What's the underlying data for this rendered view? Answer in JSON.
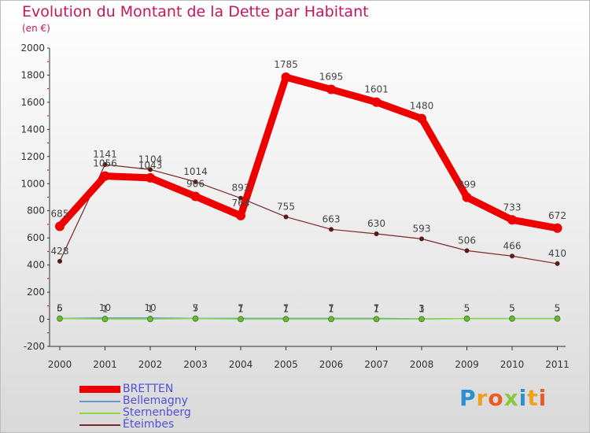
{
  "title": "Evolution du Montant de la Dette par Habitant",
  "unit": "(en €)",
  "colors": {
    "title": "#c2185b",
    "legend_text": "#5050d8",
    "axis": "#333333",
    "tick_mark": "#cc0000"
  },
  "logo": {
    "text": "Proxiti",
    "letters": [
      {
        "ch": "P",
        "color": "#2e8fd0"
      },
      {
        "ch": "r",
        "color": "#f0a020"
      },
      {
        "ch": "o",
        "color": "#ee5a24"
      },
      {
        "ch": "x",
        "color": "#8dc63f"
      },
      {
        "ch": "i",
        "color": "#2e8fd0"
      },
      {
        "ch": "t",
        "color": "#f0a020"
      },
      {
        "ch": "i",
        "color": "#ee5a24"
      }
    ]
  },
  "chart_data": {
    "type": "line",
    "title": "Evolution du Montant de la Dette par Habitant",
    "subtitle": "(en €)",
    "xlabel": "",
    "ylabel": "",
    "x": [
      "2000",
      "2001",
      "2002",
      "2003",
      "2004",
      "2005",
      "2006",
      "2007",
      "2008",
      "2009",
      "2010",
      "2011"
    ],
    "ylim": [
      -200,
      2000
    ],
    "yticks": [
      -200,
      0,
      200,
      400,
      600,
      800,
      1000,
      1200,
      1400,
      1600,
      1800,
      2000
    ],
    "grid": false,
    "legend_position": "bottom-left",
    "series": [
      {
        "name": "BRETTEN",
        "color": "#ee0000",
        "marker_color": "#ee0000",
        "values": [
          685,
          1056,
          1043,
          906,
          764,
          1785,
          1695,
          1601,
          1480,
          899,
          733,
          672
        ],
        "labels": [
          "685",
          "1056",
          "1043",
          "906",
          "764",
          "1785",
          "1695",
          "1601",
          "1480",
          "899",
          "733",
          "672"
        ]
      },
      {
        "name": "Bellemagny",
        "color": "#6699cc",
        "marker_color": "#6699cc",
        "values": [
          6,
          10,
          10,
          7,
          7,
          7,
          7,
          7,
          3,
          5,
          5,
          5
        ],
        "labels": [
          "6",
          "10",
          "10",
          "7",
          "7",
          "7",
          "7",
          "7",
          "3",
          "5",
          "5",
          "5"
        ]
      },
      {
        "name": "Sternenberg",
        "color": "#88dd44",
        "marker_color": "#66bb33",
        "values": [
          5,
          1,
          1,
          5,
          1,
          1,
          1,
          1,
          1,
          5,
          5,
          5
        ],
        "labels": [
          "5",
          "1",
          "1",
          "5",
          "1",
          "1",
          "1",
          "1",
          "1",
          "5",
          "5",
          "5"
        ]
      },
      {
        "name": "Éteimbes",
        "color": "#7a2a2a",
        "marker_color": "#5a1a1a",
        "values": [
          428,
          1141,
          1104,
          1014,
          893,
          755,
          663,
          630,
          593,
          506,
          466,
          410
        ],
        "labels": [
          "428",
          "1141",
          "1104",
          "1014",
          "893",
          "755",
          "663",
          "630",
          "593",
          "506",
          "466",
          "410"
        ]
      }
    ]
  }
}
